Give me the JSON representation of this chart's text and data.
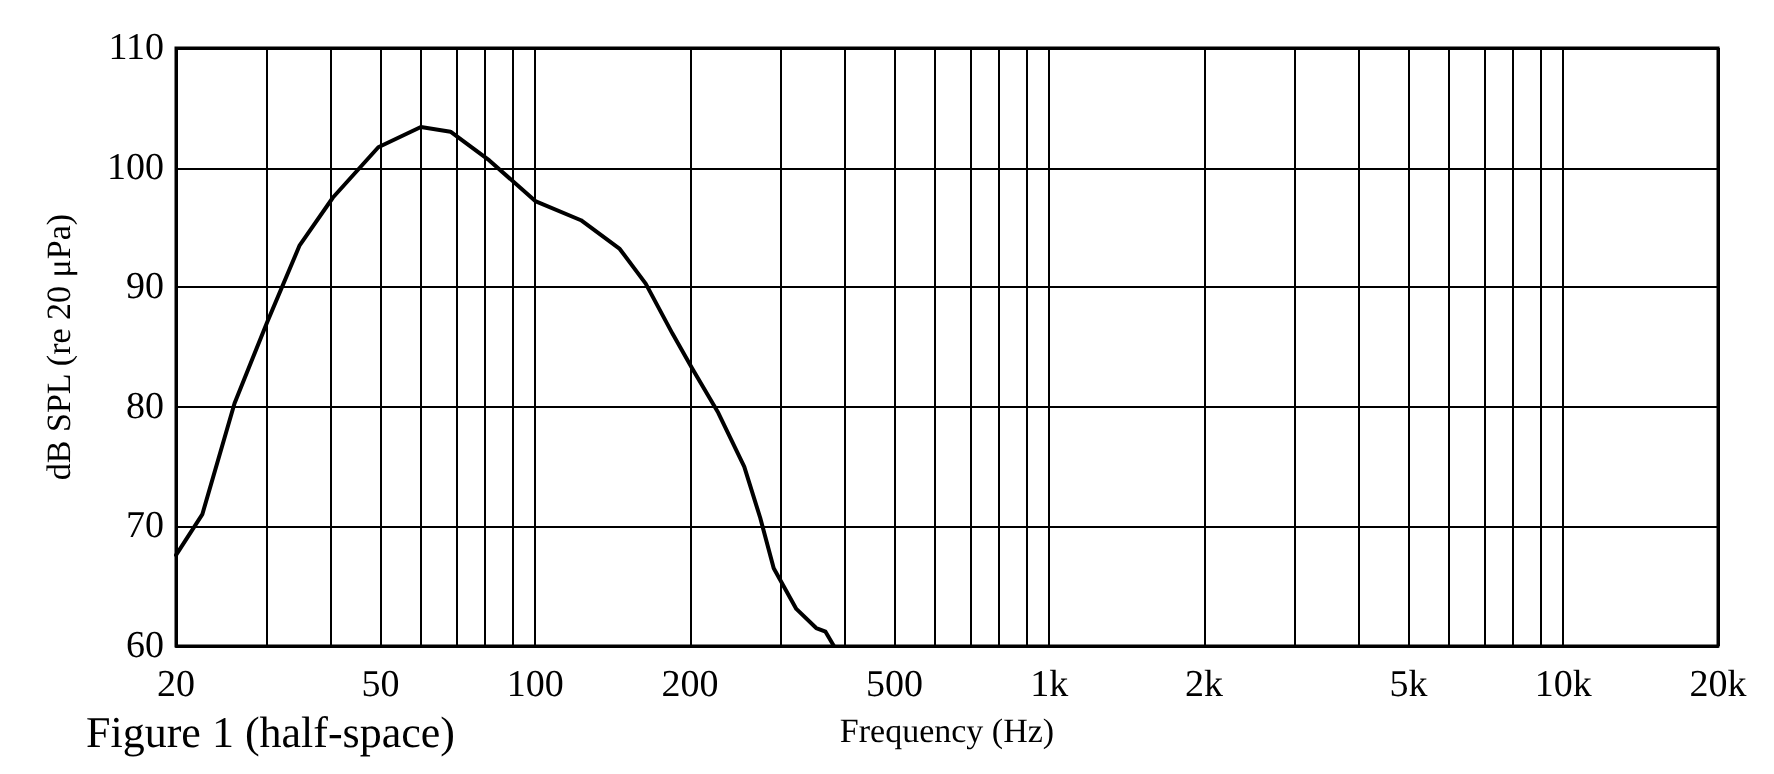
{
  "chart_data": {
    "type": "line",
    "xlabel": "Frequency (Hz)",
    "ylabel": "dB SPL (re 20 μPa)",
    "annotations": [
      "Figure 1 (half-space)"
    ],
    "x": [
      20,
      22.5,
      26,
      30.1,
      34.8,
      40.4,
      49.5,
      59.9,
      68.4,
      81.4,
      100,
      122.7,
      146,
      164,
      185,
      202,
      227,
      255,
      274,
      291,
      322,
      352,
      367,
      381
    ],
    "series": [
      {
        "color": "#000000",
        "values": [
          67.6,
          71.0,
          80.3,
          87.1,
          93.5,
          97.5,
          101.7,
          103.4,
          103.0,
          100.6,
          97.2,
          95.6,
          93.2,
          90.3,
          86.1,
          83.2,
          79.5,
          75.0,
          70.7,
          66.5,
          63.1,
          61.5,
          61.2,
          60.0
        ]
      }
    ],
    "log": "x",
    "xlim": [
      20,
      20000
    ],
    "ylim": [
      60,
      110
    ],
    "xticks": [
      20,
      {
        "value": 30,
        "label": null
      },
      {
        "value": 40,
        "label": null
      },
      50,
      {
        "value": 60,
        "label": null
      },
      {
        "value": 70,
        "label": null
      },
      {
        "value": 80,
        "label": null
      },
      {
        "value": 90,
        "label": null
      },
      100,
      200,
      {
        "value": 300,
        "label": null
      },
      {
        "value": 400,
        "label": null
      },
      500,
      {
        "value": 600,
        "label": null
      },
      {
        "value": 700,
        "label": null
      },
      {
        "value": 800,
        "label": null
      },
      {
        "value": 900,
        "label": null
      },
      {
        "value": 1000,
        "label": "1k"
      },
      {
        "value": 2000,
        "label": "2k"
      },
      {
        "value": 3000,
        "label": null
      },
      {
        "value": 4000,
        "label": null
      },
      {
        "value": 5000,
        "label": "5k"
      },
      {
        "value": 6000,
        "label": null
      },
      {
        "value": 7000,
        "label": null
      },
      {
        "value": 8000,
        "label": null
      },
      {
        "value": 9000,
        "label": null
      },
      {
        "value": 10000,
        "label": "10k"
      },
      {
        "value": 20000,
        "label": "20k"
      }
    ],
    "yticks": [
      60,
      70,
      80,
      90,
      100,
      110
    ],
    "grid": true,
    "marker": "none",
    "line_style": "solid"
  }
}
